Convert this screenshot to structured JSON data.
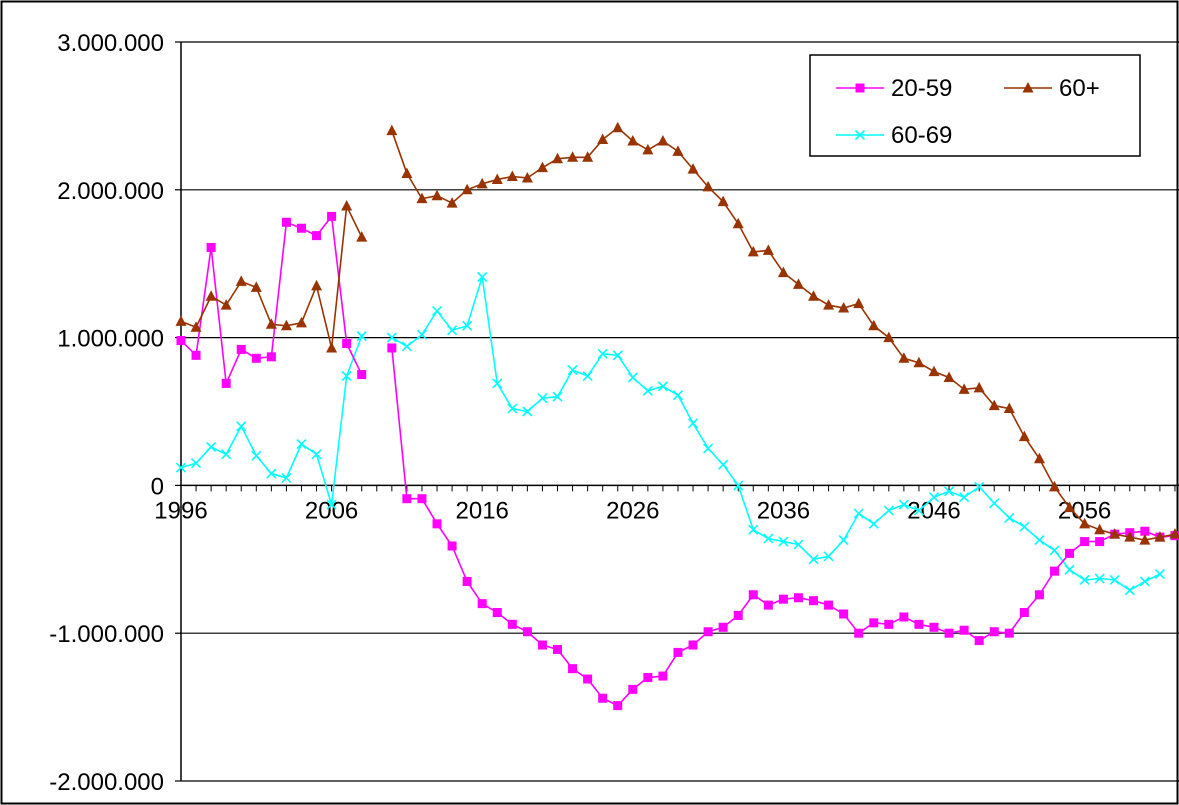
{
  "chart_data": {
    "type": "line",
    "title": "",
    "xlabel": "",
    "ylabel": "",
    "x_start": 1996,
    "x_end": 2063,
    "xticks": [
      1996,
      2006,
      2016,
      2026,
      2036,
      2046,
      2056
    ],
    "xtick_labels": [
      "1996",
      "2006",
      "2016",
      "2026",
      "2036",
      "2046",
      "2056"
    ],
    "ylim": [
      -2000000,
      3000000
    ],
    "yticks": [
      -2000000,
      -1000000,
      0,
      1000000,
      2000000,
      3000000
    ],
    "ytick_labels": [
      "-2.000.000",
      "-1.000.000",
      "0",
      "1.000.000",
      "2.000.000",
      "3.000.000"
    ],
    "grid": "horizontal",
    "legend_position": "top-right",
    "series": [
      {
        "name": "20-59",
        "color": "#ff00ff",
        "marker": "square",
        "segments": [
          {
            "x_start": 1996,
            "values": [
              980000,
              880000,
              1610000,
              690000,
              920000,
              860000,
              870000,
              1780000,
              1740000,
              1690000,
              1820000,
              960000,
              750000
            ]
          },
          {
            "x_start": 2010,
            "values": [
              930000,
              -90000,
              -90000,
              -260000,
              -410000,
              -650000,
              -800000,
              -860000,
              -940000,
              -990000,
              -1080000,
              -1110000,
              -1240000,
              -1310000,
              -1440000,
              -1490000,
              -1380000,
              -1300000,
              -1290000,
              -1130000,
              -1080000,
              -990000,
              -960000,
              -880000,
              -740000,
              -810000,
              -770000,
              -760000,
              -780000,
              -810000,
              -870000,
              -1000000,
              -930000,
              -940000,
              -890000,
              -940000,
              -960000,
              -1000000,
              -980000,
              -1050000,
              -990000,
              -1000000,
              -860000,
              -740000,
              -580000,
              -460000,
              -380000,
              -380000,
              -330000,
              -320000,
              -310000,
              -350000,
              -340000
            ]
          }
        ]
      },
      {
        "name": "60+",
        "color": "#993300",
        "marker": "triangle",
        "segments": [
          {
            "x_start": 1996,
            "values": [
              1110000,
              1070000,
              1280000,
              1220000,
              1380000,
              1340000,
              1090000,
              1080000,
              1100000,
              1350000,
              930000,
              1890000,
              1680000
            ]
          },
          {
            "x_start": 2010,
            "values": [
              2400000,
              2110000,
              1940000,
              1960000,
              1910000,
              2000000,
              2040000,
              2070000,
              2090000,
              2080000,
              2150000,
              2210000,
              2220000,
              2220000,
              2340000,
              2420000,
              2330000,
              2270000,
              2330000,
              2260000,
              2140000,
              2020000,
              1920000,
              1770000,
              1580000,
              1590000,
              1440000,
              1360000,
              1280000,
              1220000,
              1200000,
              1230000,
              1080000,
              1000000,
              860000,
              830000,
              770000,
              730000,
              650000,
              660000,
              540000,
              520000,
              330000,
              180000,
              -10000,
              -150000,
              -260000,
              -300000,
              -330000,
              -350000,
              -370000,
              -350000,
              -330000
            ]
          }
        ]
      },
      {
        "name": "60-69",
        "color": "#00ffff",
        "marker": "x",
        "segments": [
          {
            "x_start": 1996,
            "values": [
              120000,
              150000,
              260000,
              210000,
              400000,
              200000,
              80000,
              50000,
              280000,
              210000,
              -130000,
              740000,
              1010000
            ]
          },
          {
            "x_start": 2010,
            "values": [
              1000000,
              940000,
              1020000,
              1180000,
              1050000,
              1080000,
              1410000,
              690000,
              520000,
              500000,
              590000,
              600000,
              780000,
              740000,
              890000,
              880000,
              730000,
              640000,
              670000,
              610000,
              420000,
              250000,
              140000,
              0,
              -300000,
              -360000,
              -380000,
              -400000,
              -500000,
              -480000,
              -370000,
              -190000,
              -260000,
              -170000,
              -130000,
              -170000,
              -80000,
              -40000,
              -80000,
              -10000,
              -120000,
              -220000,
              -280000,
              -370000,
              -440000,
              -570000,
              -640000,
              -630000,
              -640000,
              -710000,
              -650000,
              -600000
            ]
          }
        ]
      }
    ]
  }
}
